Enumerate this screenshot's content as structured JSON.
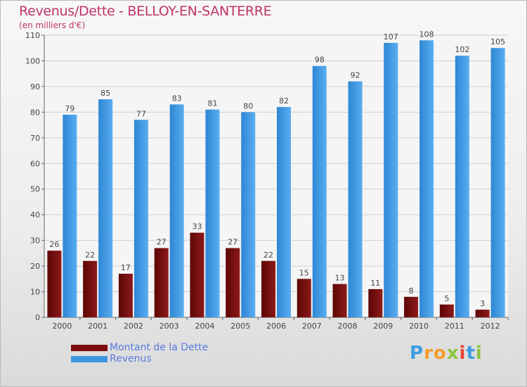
{
  "header": {
    "title": "Revenus/Dette - BELLOY-EN-SANTERRE",
    "subtitle": "(en milliers d'€)"
  },
  "colors": {
    "debt": "#7a0c0c",
    "revenue": "#3b96e0",
    "title": "#c0346a",
    "grid": "#d0d0d0",
    "axis": "#666666"
  },
  "chart_data": {
    "type": "bar",
    "title": "Revenus/Dette - BELLOY-EN-SANTERRE",
    "subtitle": "(en milliers d'€)",
    "xlabel": "",
    "ylabel": "",
    "ylim": [
      0,
      110
    ],
    "yticks": [
      0,
      10,
      20,
      30,
      40,
      50,
      60,
      70,
      80,
      90,
      100,
      110
    ],
    "grid": true,
    "categories": [
      "2000",
      "2001",
      "2002",
      "2003",
      "2004",
      "2005",
      "2006",
      "2007",
      "2008",
      "2009",
      "2010",
      "2011",
      "2012"
    ],
    "series": [
      {
        "name": "Montant de la Dette",
        "color": "#7a0c0c",
        "values": [
          26,
          22,
          17,
          27,
          33,
          27,
          22,
          15,
          13,
          11,
          8,
          5,
          3
        ]
      },
      {
        "name": "Revenus",
        "color": "#3b96e0",
        "values": [
          79,
          85,
          77,
          83,
          81,
          80,
          82,
          98,
          92,
          107,
          108,
          102,
          105
        ]
      }
    ],
    "legend_position": "bottom-left"
  },
  "legend": {
    "items": [
      {
        "label": "Montant de la Dette",
        "color": "#7a0c0c"
      },
      {
        "label": "Revenus",
        "color": "#3b96e0"
      }
    ]
  },
  "brand": {
    "logo_text": "Proxiti"
  }
}
